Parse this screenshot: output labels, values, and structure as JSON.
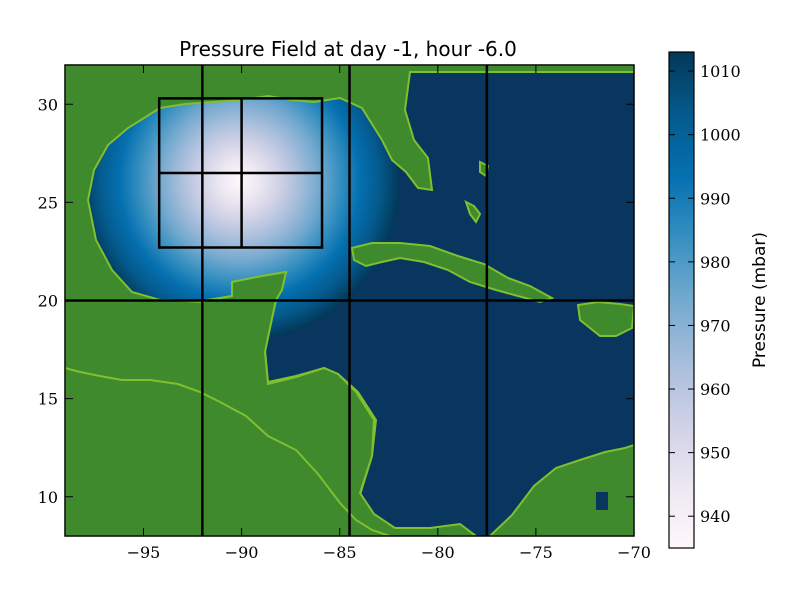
{
  "chart_data": {
    "type": "heatmap",
    "title": "Pressure Field at day -1, hour -6.0",
    "xlabel": "",
    "ylabel": "",
    "xlim": [
      -99,
      -70
    ],
    "ylim": [
      8,
      32
    ],
    "x_ticks": [
      -95,
      -90,
      -85,
      -80,
      -75,
      -70
    ],
    "x_tick_labels": [
      "−95",
      "−90",
      "−85",
      "−80",
      "−75",
      "−70"
    ],
    "y_ticks": [
      10,
      15,
      20,
      25,
      30
    ],
    "y_tick_labels": [
      "10",
      "15",
      "20",
      "25",
      "30"
    ],
    "grid": false,
    "pressure_field": {
      "center_lon": -90.1,
      "center_lat": 26.1,
      "min_pressure": 935,
      "ambient_pressure": 1012
    },
    "land_color": "#3f8a2c",
    "land_edge_color": "#7fbf30",
    "ocean_color": "#08365e",
    "grid_lines": {
      "vertical_lon": [
        -92,
        -84.5,
        -77.5
      ],
      "horizontal_lat": [
        20
      ]
    },
    "inner_box": {
      "lon": [
        -94.2,
        -85.9
      ],
      "lat": [
        22.7,
        30.3
      ],
      "split_lon": -90,
      "split_lat": 26.5
    },
    "colorbar": {
      "label": "Pressure (mbar)",
      "min": 935,
      "max": 1013,
      "ticks": [
        940,
        950,
        960,
        970,
        980,
        990,
        1000,
        1010
      ],
      "tick_labels": [
        "940",
        "950",
        "960",
        "970",
        "980",
        "990",
        "1000",
        "1010"
      ],
      "colormap": "PuBu",
      "colors": [
        "#fff7fb",
        "#ece7f2",
        "#d0d1e6",
        "#a6bddb",
        "#74a9cf",
        "#3690c0",
        "#0570b0",
        "#045a8d",
        "#023858"
      ]
    }
  }
}
